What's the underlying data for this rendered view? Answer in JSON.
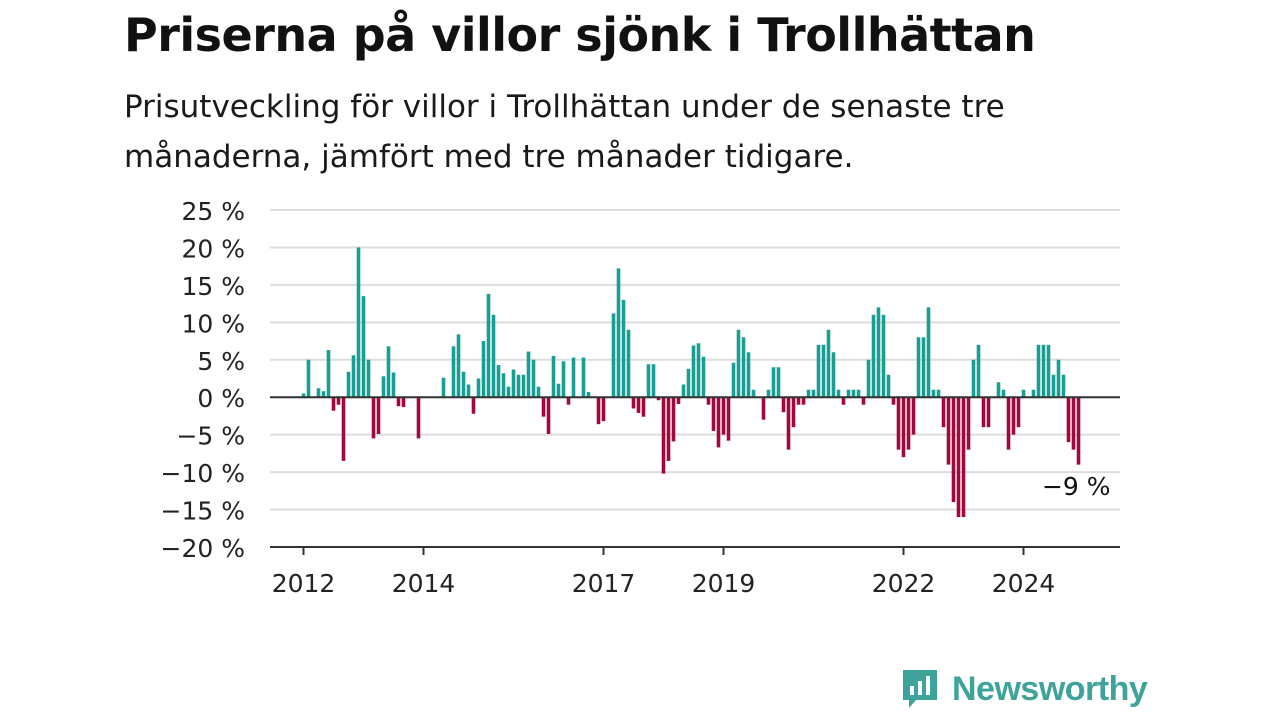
{
  "header": {
    "title": "Priserna på villor sjönk i Trollhättan",
    "subtitle": "Prisutveckling för villor i Trollhättan under de senaste tre månaderna, jämfört med tre månader tidigare."
  },
  "brand": {
    "name": "Newsworthy",
    "icon": "newsworthy-logo-icon",
    "color": "#3ea39a"
  },
  "chart_data": {
    "type": "bar",
    "title": "Priserna på villor sjönk i Trollhättan",
    "subtitle": "Prisutveckling för villor i Trollhättan under de senaste tre månaderna, jämfört med tre månader tidigare.",
    "ylim": [
      -20,
      25
    ],
    "y_ticks": [
      25,
      20,
      15,
      10,
      5,
      0,
      -5,
      -10,
      -15,
      -20
    ],
    "y_tick_labels": [
      "25 %",
      "20 %",
      "15 %",
      "10 %",
      "5 %",
      "0 %",
      "−5 %",
      "−10 %",
      "−15 %",
      "−20 %"
    ],
    "x_ticks": [
      "2012",
      "2014",
      "2017",
      "2019",
      "2022",
      "2024"
    ],
    "grid": true,
    "colors": {
      "positive": "#1a9e94",
      "negative": "#a0093d",
      "grid": "#dddddd",
      "axis": "#333333"
    },
    "annotation": {
      "text": "−9 %",
      "value": -9,
      "target": "last"
    },
    "series": [
      {
        "values": [
          0.5,
          5,
          0,
          1.2,
          0.8,
          6.3,
          -1.8,
          -1,
          -8.5,
          3.4,
          5.6,
          20,
          13.5,
          5,
          -5.5,
          -4.9,
          2.8,
          6.8,
          3.3,
          -1.2,
          -1.3,
          0,
          0,
          -5.5,
          0,
          0,
          0,
          0,
          2.6,
          0,
          6.8,
          8.4,
          3.4,
          1.7,
          -2.2,
          2.5,
          7.5,
          13.8,
          11,
          4.3,
          3.2,
          1.4,
          3.7,
          3,
          3,
          6.1,
          5,
          1.4,
          -2.6,
          -4.9,
          5.5,
          1.8,
          4.8,
          -1,
          5.3,
          0,
          5.3,
          0.7,
          0,
          -3.6,
          -3.2,
          0,
          11.2,
          17.2,
          13,
          9,
          -1.5,
          -2.1,
          -2.6,
          4.4,
          4.4,
          -0.4,
          -10.2,
          -8.5,
          -5.9,
          -0.9,
          1.7,
          3.8,
          6.9,
          7.2,
          5.4,
          -1,
          -4.5,
          -6.7,
          -5,
          -5.8,
          4.6,
          9,
          8,
          6,
          1,
          0,
          -3,
          1,
          4,
          4,
          -2,
          -7,
          -4,
          -1,
          -1,
          1,
          1,
          7,
          7,
          9,
          6,
          1,
          -1,
          1,
          1,
          1,
          -1,
          5,
          11,
          12,
          11,
          3,
          -1,
          -7,
          -8,
          -7,
          -5,
          8,
          8,
          12,
          1,
          1,
          -4,
          -9,
          -14,
          -16,
          -16,
          -7,
          5,
          7,
          -4,
          -4,
          0,
          2,
          1,
          -7,
          -5,
          -4,
          1,
          0,
          1,
          7,
          7,
          7,
          3,
          5,
          3,
          -6,
          -7,
          -9
        ]
      }
    ]
  }
}
